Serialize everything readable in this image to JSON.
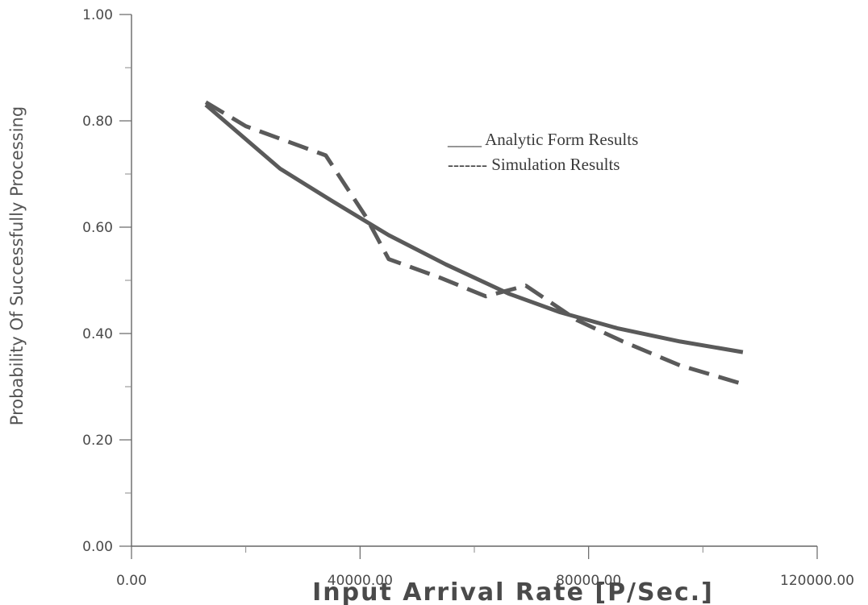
{
  "chart_data": {
    "type": "line",
    "title": "",
    "xlabel": "Input Arrival Rate [P/Sec.]",
    "ylabel": "Probability Of Successfully Processing",
    "xlim": [
      0,
      120000
    ],
    "ylim": [
      0,
      1
    ],
    "x_ticks": [
      0,
      40000,
      80000,
      120000
    ],
    "x_tick_labels": [
      "0.00",
      "40000.00",
      "80000.00",
      "120000.00"
    ],
    "y_ticks": [
      0,
      0.2,
      0.4,
      0.6,
      0.8,
      1.0
    ],
    "y_tick_labels": [
      "0.00",
      "0.20",
      "0.40",
      "0.60",
      "0.80",
      "1.00"
    ],
    "grid": false,
    "legend_position": "top-right",
    "colors": {
      "series": "#5a5a5a",
      "axis": "#666666",
      "text": "#444444"
    },
    "series": [
      {
        "name": "Analytic Form Results",
        "legend_label": "____ Analytic Form Results",
        "style": "solid",
        "points": [
          [
            13000,
            0.83
          ],
          [
            26000,
            0.71
          ],
          [
            35000,
            0.65
          ],
          [
            45000,
            0.585
          ],
          [
            55000,
            0.53
          ],
          [
            66000,
            0.475
          ],
          [
            75000,
            0.44
          ],
          [
            85000,
            0.41
          ],
          [
            96000,
            0.385
          ],
          [
            107000,
            0.365
          ]
        ]
      },
      {
        "name": "Simulation Results",
        "legend_label": "------- Simulation Results",
        "style": "dashed",
        "points": [
          [
            13000,
            0.835
          ],
          [
            20000,
            0.79
          ],
          [
            34000,
            0.735
          ],
          [
            41000,
            0.62
          ],
          [
            45000,
            0.54
          ],
          [
            54000,
            0.505
          ],
          [
            62000,
            0.47
          ],
          [
            69000,
            0.49
          ],
          [
            78000,
            0.425
          ],
          [
            86000,
            0.385
          ],
          [
            96000,
            0.34
          ],
          [
            107000,
            0.305
          ]
        ]
      }
    ]
  }
}
